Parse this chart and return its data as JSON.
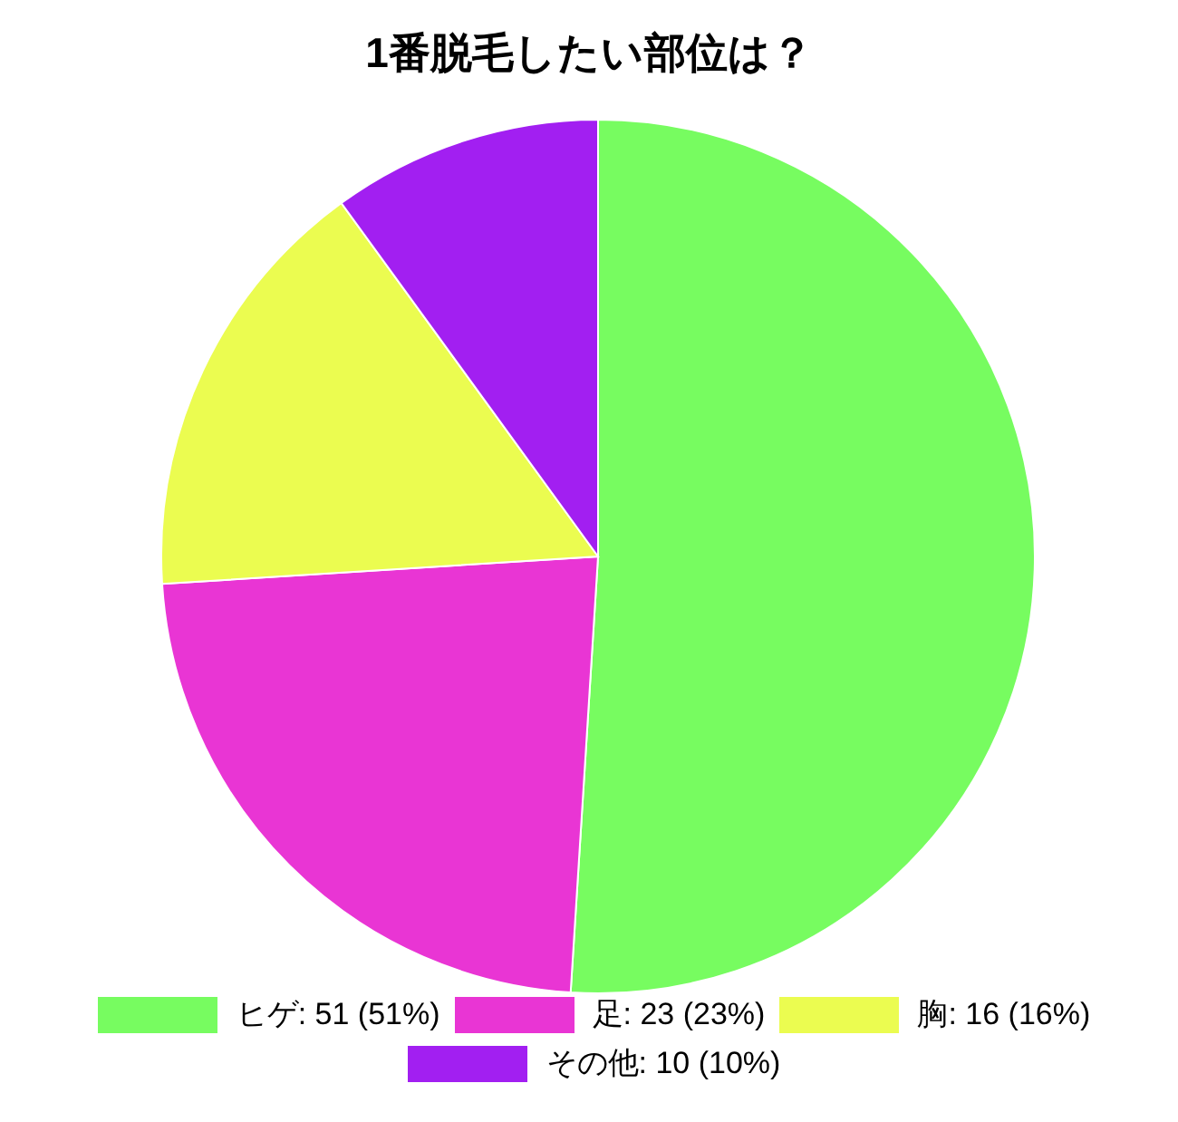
{
  "chart_data": {
    "type": "pie",
    "title": "1番脱毛したい部位は？",
    "categories": [
      "ヒゲ",
      "足",
      "胸",
      "その他"
    ],
    "values": [
      51,
      23,
      16,
      10
    ],
    "value_labels": [
      ": 51 (51%)",
      ": 23 (23%)",
      ": 16 (16%)",
      ": 10 (10%)"
    ],
    "colors": [
      "#77fc60",
      "#e935d4",
      "#ebfc50",
      "#a21ff1"
    ],
    "legend": "bottom"
  }
}
